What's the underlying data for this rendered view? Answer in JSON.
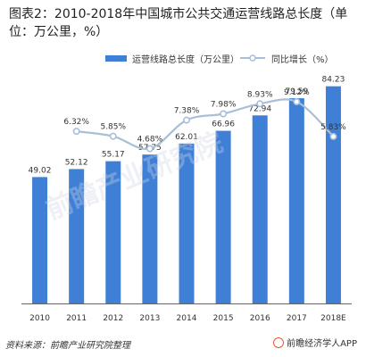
{
  "title": "图表2：2010-2018年中国城市公共交通运营线路总长度（单位：万公里，%）",
  "colors": {
    "bar": "#3f80d6",
    "line": "#a9bfd9",
    "marker_fill": "#ffffff",
    "marker_stroke": "#a9bfd9",
    "axis": "#666666"
  },
  "chart_data": {
    "type": "bar",
    "title": "图表2：2010-2018年中国城市公共交通运营线路总长度（单位：万公里，%）",
    "categories": [
      "2010",
      "2011",
      "2012",
      "2013",
      "2014",
      "2015",
      "2016",
      "2017",
      "2018E"
    ],
    "series": [
      {
        "name": "运营线路总长度（万公里）",
        "type": "bar",
        "values": [
          49.02,
          52.12,
          55.17,
          57.75,
          62.01,
          66.96,
          72.94,
          79.59,
          84.23
        ],
        "labels": [
          "49.02",
          "52.12",
          "55.17",
          "57.75",
          "62.01",
          "66.96",
          "72.94",
          "79.59",
          "84.23"
        ]
      },
      {
        "name": "同比增长（%）",
        "type": "line",
        "values": [
          null,
          6.32,
          5.85,
          4.68,
          7.38,
          7.98,
          8.93,
          9.12,
          5.83
        ],
        "labels": [
          "",
          "6.32%",
          "5.85%",
          "4.68%",
          "7.38%",
          "7.98%",
          "8.93%",
          "9.12%",
          "5.83%"
        ]
      }
    ],
    "xlabel": "",
    "ylabel": "",
    "ylim": [
      0,
      90
    ],
    "y2lim": [
      -10,
      12
    ],
    "grid": false,
    "legend": "top"
  },
  "watermark": "前瞻产业研究院",
  "footer": {
    "source": "资料来源：前瞻产业研究院整理",
    "brand": "前瞻经济学人APP"
  }
}
